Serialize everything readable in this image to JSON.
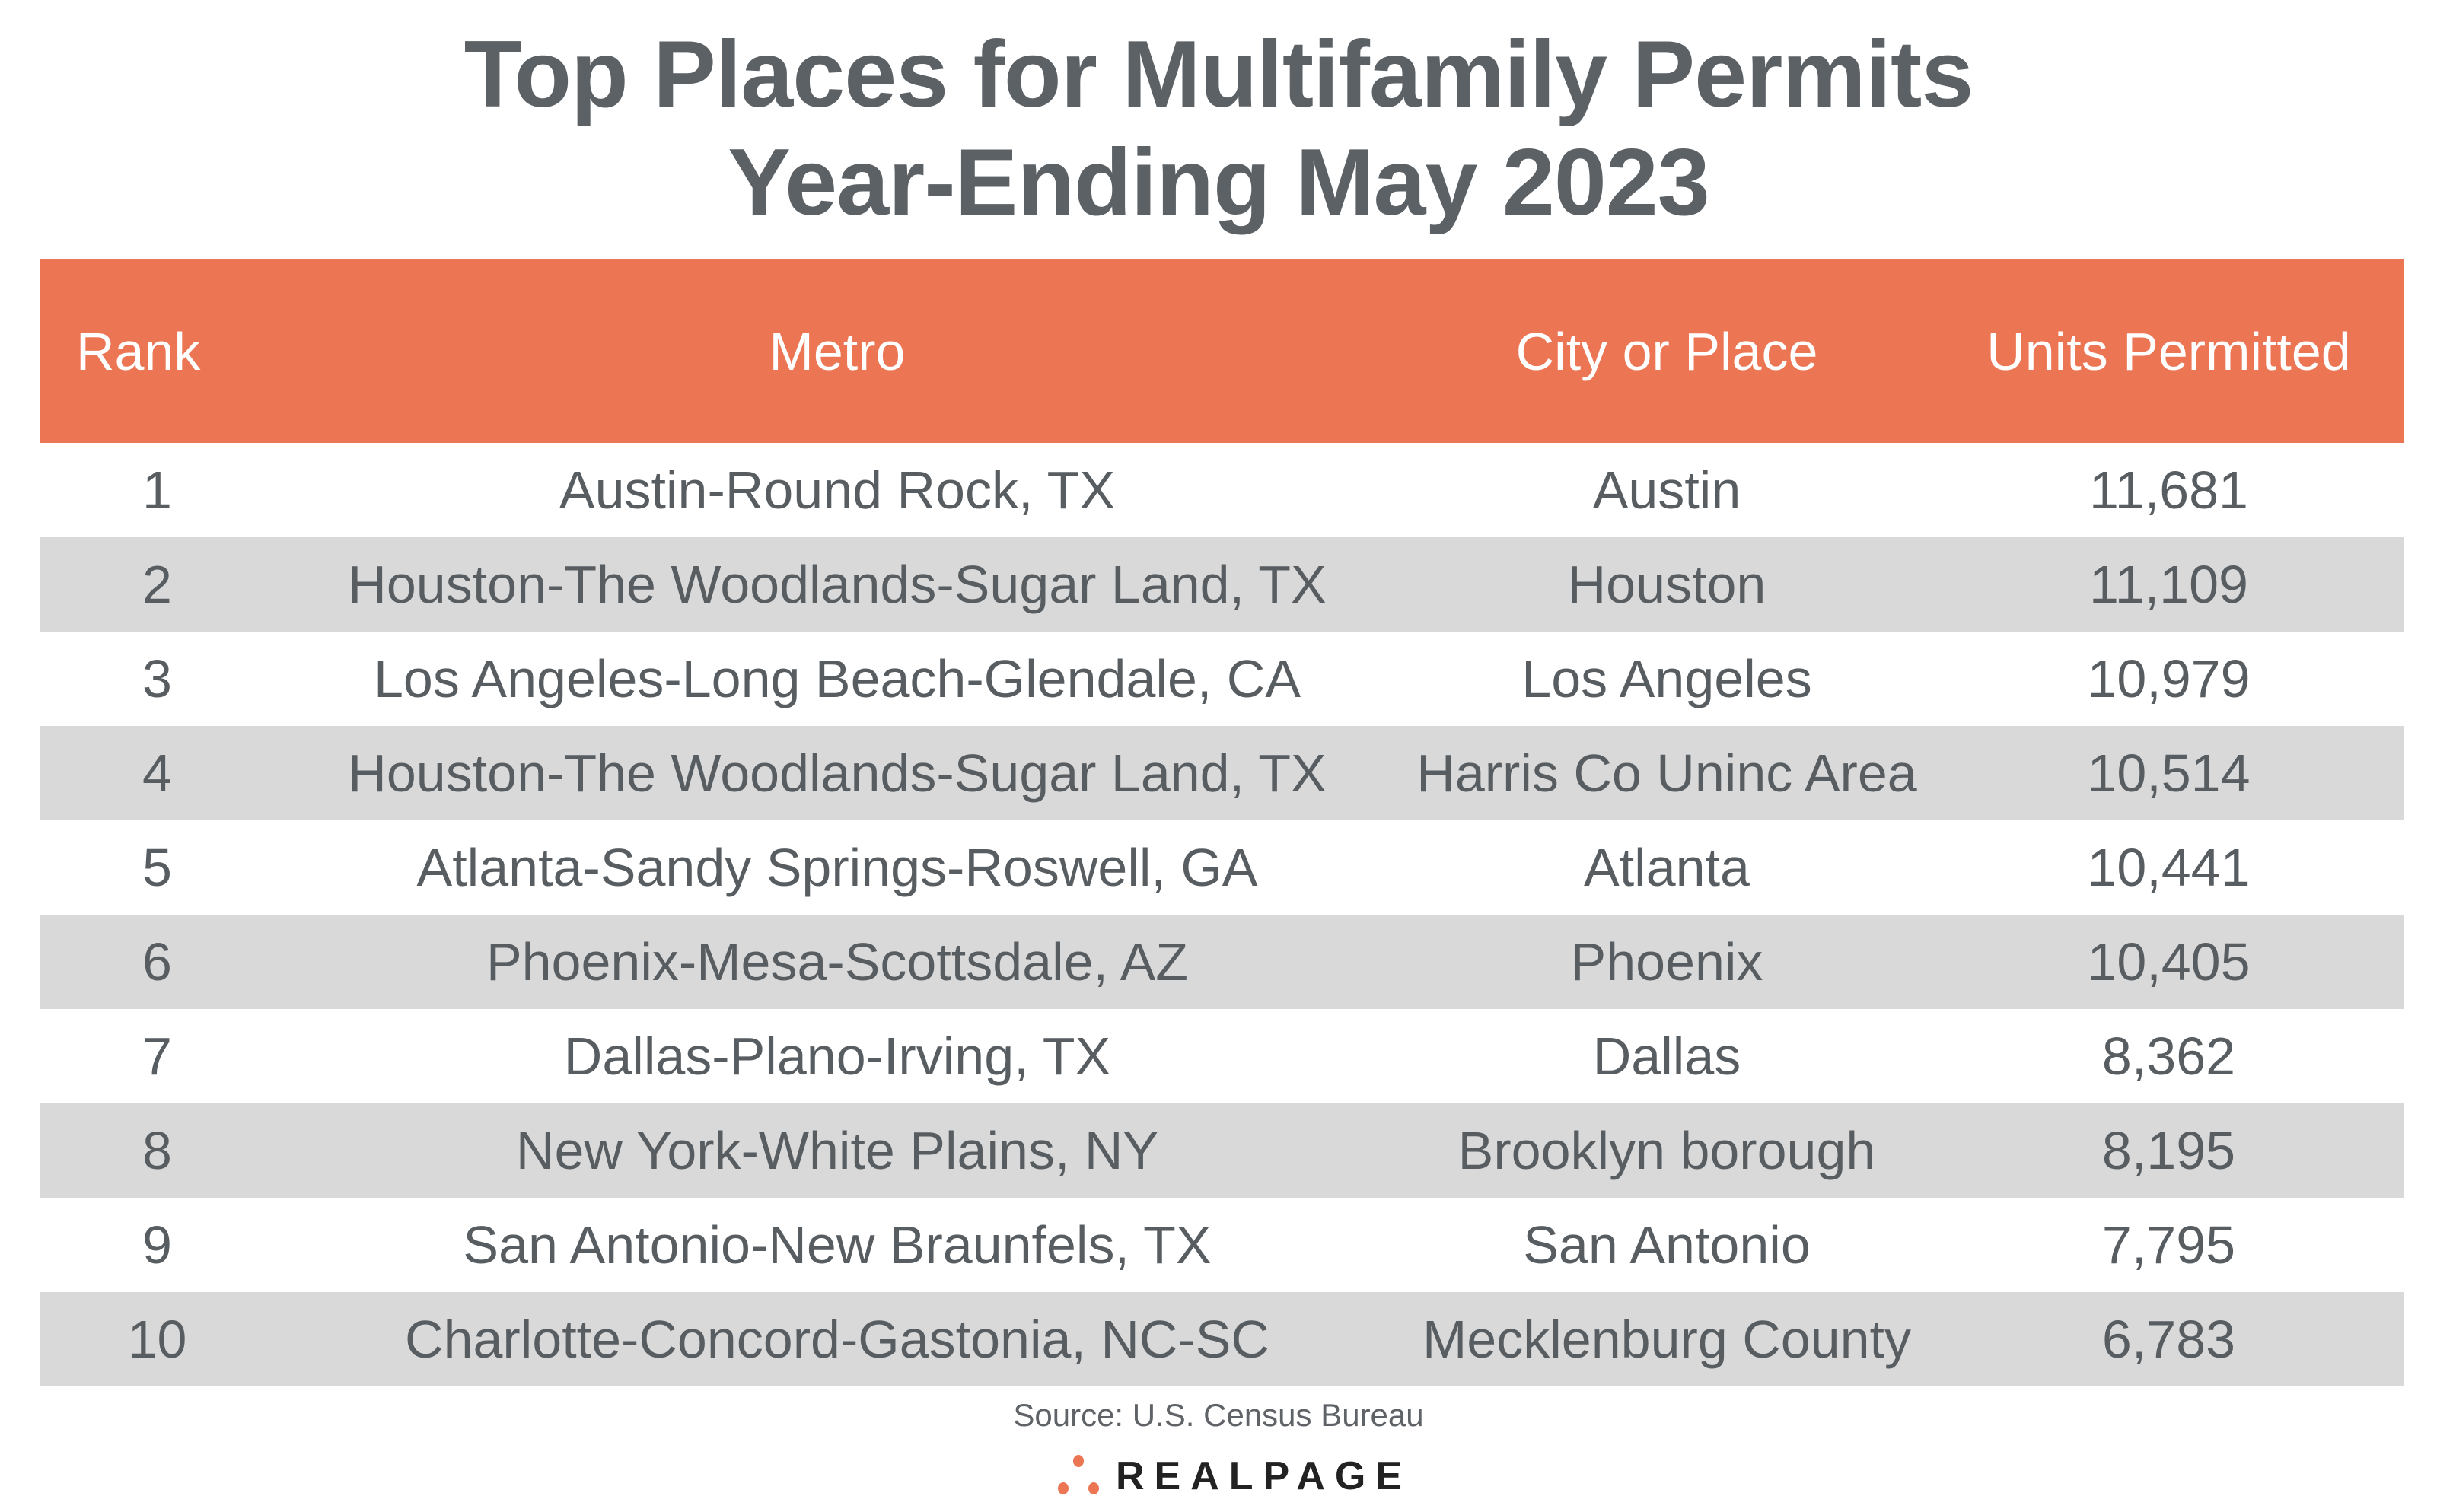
{
  "title_line1": "Top Places for Multifamily Permits",
  "title_line2": "Year-Ending May 2023",
  "headers": [
    "Rank",
    "Metro",
    "City or Place",
    "Units Permitted"
  ],
  "rows": [
    {
      "rank": "1",
      "metro": "Austin-Round Rock, TX",
      "city": "Austin",
      "units": "11,681"
    },
    {
      "rank": "2",
      "metro": "Houston-The Woodlands-Sugar Land, TX",
      "city": "Houston",
      "units": "11,109"
    },
    {
      "rank": "3",
      "metro": "Los Angeles-Long Beach-Glendale, CA",
      "city": "Los Angeles",
      "units": "10,979"
    },
    {
      "rank": "4",
      "metro": "Houston-The Woodlands-Sugar Land, TX",
      "city": "Harris Co Uninc Area",
      "units": "10,514"
    },
    {
      "rank": "5",
      "metro": "Atlanta-Sandy Springs-Roswell, GA",
      "city": "Atlanta",
      "units": "10,441"
    },
    {
      "rank": "6",
      "metro": "Phoenix-Mesa-Scottsdale, AZ",
      "city": "Phoenix",
      "units": "10,405"
    },
    {
      "rank": "7",
      "metro": "Dallas-Plano-Irving, TX",
      "city": "Dallas",
      "units": "8,362"
    },
    {
      "rank": "8",
      "metro": "New York-White Plains, NY",
      "city": "Brooklyn borough",
      "units": "8,195"
    },
    {
      "rank": "9",
      "metro": "San Antonio-New Braunfels, TX",
      "city": "San Antonio",
      "units": "7,795"
    },
    {
      "rank": "10",
      "metro": "Charlotte-Concord-Gastonia, NC-SC",
      "city": "Mecklenburg County",
      "units": "6,783"
    }
  ],
  "source": "Source: U.S. Census Bureau",
  "logo_text": "REALPAGE",
  "colors": {
    "header": "#ec7554",
    "alt_row": "#d9d9d9",
    "text": "#585d61"
  }
}
